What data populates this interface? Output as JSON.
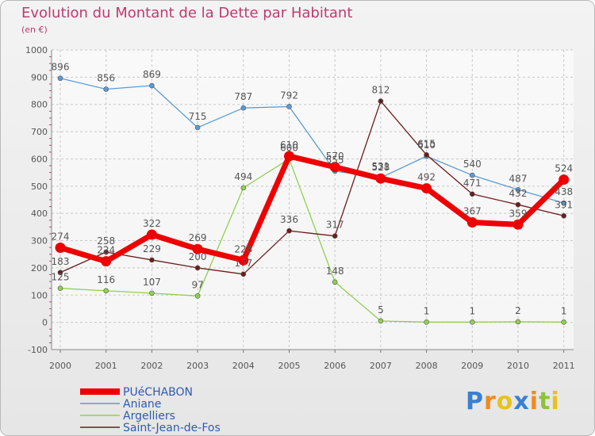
{
  "chart_data": {
    "type": "line",
    "title": "Evolution du Montant de la Dette par Habitant",
    "subtitle": "(en €)",
    "x": [
      "2000",
      "2001",
      "2002",
      "2003",
      "2004",
      "2005",
      "2006",
      "2007",
      "2008",
      "2009",
      "2010",
      "2011"
    ],
    "ylim": [
      -100,
      1000
    ],
    "yticks": [
      -100,
      0,
      100,
      200,
      300,
      400,
      500,
      600,
      700,
      800,
      900,
      1000
    ],
    "grid": true,
    "legend_position": "bottom-left",
    "series": [
      {
        "name": "PUéCHABON",
        "color": "#ee0000",
        "values": [
          274,
          224,
          322,
          269,
          228,
          610,
          570,
          528,
          492,
          367,
          359,
          524
        ]
      },
      {
        "name": "Aniane",
        "color": "#5b9bd5",
        "values": [
          896,
          856,
          869,
          715,
          787,
          792,
          555,
          531,
          610,
          540,
          487,
          438
        ]
      },
      {
        "name": "Argelliers",
        "color": "#90d050",
        "values": [
          125,
          116,
          107,
          97,
          494,
          600,
          148,
          5,
          1,
          1,
          2,
          1
        ]
      },
      {
        "name": "Saint-Jean-de-Fos",
        "color": "#6b1c1c",
        "values": [
          183,
          258,
          229,
          200,
          177,
          336,
          317,
          812,
          615,
          471,
          432,
          391
        ]
      }
    ]
  },
  "logo": {
    "text": "Proxiti",
    "letters": [
      "P",
      "r",
      "o",
      "x",
      "i",
      "t",
      "i"
    ],
    "colors": [
      "#3a7fd0",
      "#f08a1c",
      "#e8c21a",
      "#3a7fd0",
      "#f08a1c",
      "#8fc23a",
      "#e8c21a"
    ]
  }
}
